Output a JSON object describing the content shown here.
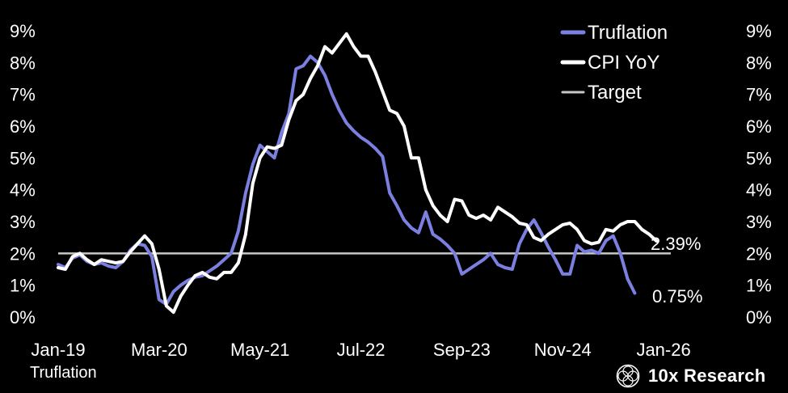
{
  "colors": {
    "truflation": "#7b7fe0",
    "cpi": "#ffffff",
    "target": "#c8c8c8",
    "background": "#000000"
  },
  "source_label": "Truflation",
  "brand": {
    "name": "10x Research",
    "icon": "interlaced-circles-logo-icon"
  },
  "end_labels": {
    "cpi": "2.39%",
    "truflation": "0.75%"
  },
  "chart_data": {
    "type": "line",
    "title": "",
    "xlabel": "",
    "ylabel": "",
    "x_range": [
      0,
      85
    ],
    "ylim": [
      0,
      9
    ],
    "grid": false,
    "legend_position": "top-right",
    "x_tick_labels": [
      {
        "label": "Jan-19",
        "x": 0
      },
      {
        "label": "Mar-20",
        "x": 14
      },
      {
        "label": "May-21",
        "x": 28
      },
      {
        "label": "Jul-22",
        "x": 42
      },
      {
        "label": "Sep-23",
        "x": 56
      },
      {
        "label": "Nov-24",
        "x": 70
      },
      {
        "label": "Jan-26",
        "x": 84
      }
    ],
    "y_tick_labels": [
      "0%",
      "1%",
      "2%",
      "3%",
      "4%",
      "5%",
      "6%",
      "7%",
      "8%",
      "9%"
    ],
    "series": [
      {
        "name": "Truflation",
        "values": [
          1.65,
          1.55,
          1.85,
          1.95,
          1.75,
          1.65,
          1.7,
          1.6,
          1.55,
          1.75,
          2.1,
          2.3,
          2.25,
          1.9,
          0.55,
          0.4,
          0.8,
          1.0,
          1.15,
          1.25,
          1.3,
          1.45,
          1.6,
          1.8,
          2.0,
          2.7,
          3.9,
          4.8,
          5.4,
          5.2,
          5.0,
          5.8,
          6.4,
          7.8,
          7.9,
          8.2,
          8.0,
          7.6,
          7.0,
          6.5,
          6.1,
          5.85,
          5.65,
          5.5,
          5.3,
          5.05,
          3.9,
          3.5,
          3.05,
          2.8,
          2.65,
          3.3,
          2.6,
          2.45,
          2.25,
          2.0,
          1.35,
          1.5,
          1.65,
          1.8,
          2.0,
          1.65,
          1.55,
          1.5,
          2.3,
          2.75,
          3.05,
          2.65,
          2.2,
          1.8,
          1.35,
          1.35,
          2.25,
          2.05,
          2.1,
          2.0,
          2.4,
          2.55,
          2.0,
          1.2,
          0.75
        ],
        "end_value": 0.75
      },
      {
        "name": "CPI YoY",
        "values": [
          1.55,
          1.5,
          1.9,
          2.0,
          1.8,
          1.65,
          1.8,
          1.75,
          1.7,
          1.75,
          2.05,
          2.3,
          2.55,
          2.3,
          1.5,
          0.35,
          0.15,
          0.65,
          1.0,
          1.3,
          1.4,
          1.25,
          1.2,
          1.4,
          1.4,
          1.7,
          2.6,
          4.2,
          5.0,
          5.35,
          5.3,
          5.4,
          6.2,
          6.8,
          7.0,
          7.5,
          7.9,
          8.5,
          8.3,
          8.6,
          8.9,
          8.5,
          8.2,
          8.2,
          7.7,
          7.1,
          6.5,
          6.4,
          6.0,
          5.0,
          5.0,
          4.0,
          3.5,
          3.2,
          3.0,
          3.7,
          3.65,
          3.2,
          3.1,
          3.2,
          3.05,
          3.45,
          3.3,
          3.15,
          2.95,
          2.9,
          2.5,
          2.4,
          2.6,
          2.75,
          2.9,
          2.95,
          2.75,
          2.4,
          2.3,
          2.35,
          2.75,
          2.7,
          2.9,
          3.0,
          3.0,
          2.75,
          2.6,
          2.39
        ],
        "end_value": 2.39
      },
      {
        "name": "Target",
        "values": [
          2.0,
          2.0
        ],
        "x": [
          0,
          85
        ]
      }
    ]
  }
}
